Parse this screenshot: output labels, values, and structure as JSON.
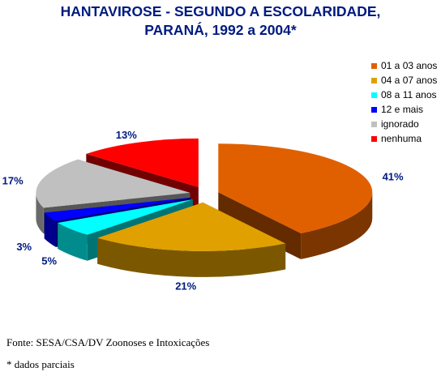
{
  "chart_data": {
    "type": "pie",
    "title_line1": "HANTAVIROSE - SEGUNDO A ESCOLARIDADE,",
    "title_line2": "PARANÁ, 1992 a 2004*",
    "slices": [
      {
        "label": "01 a 03 anos",
        "value": 41,
        "value_label": "41%",
        "color": "#e06000"
      },
      {
        "label": "04 a 07 anos",
        "value": 21,
        "value_label": "21%",
        "color": "#e0a000"
      },
      {
        "label": "08 a 11 anos",
        "value": 5,
        "value_label": "5%",
        "color": "#00ffff"
      },
      {
        "label": "12 e mais",
        "value": 3,
        "value_label": "3%",
        "color": "#0000ff"
      },
      {
        "label": "ignorado",
        "value": 17,
        "value_label": "17%",
        "color": "#c0c0c0"
      },
      {
        "label": "nenhuma",
        "value": 13,
        "value_label": "13%",
        "color": "#ff0000"
      }
    ]
  },
  "footer": {
    "source": "Fonte: SESA/CSA/DV Zoonoses e Intoxicações",
    "note": "* dados parciais"
  }
}
